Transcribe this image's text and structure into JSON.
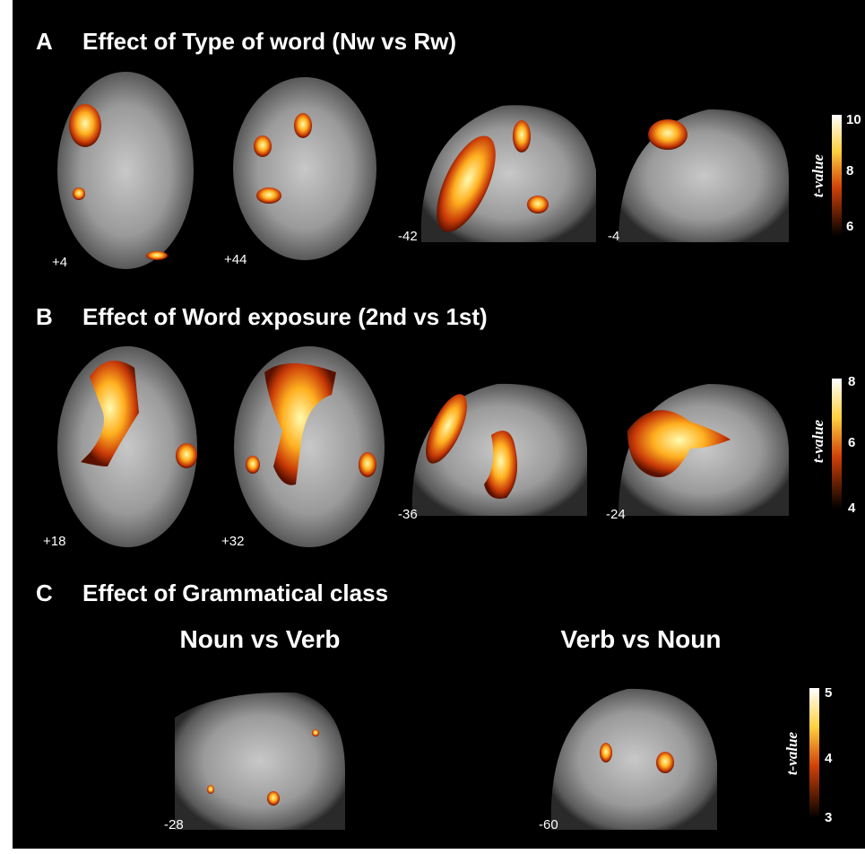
{
  "panels": [
    {
      "label": "A",
      "title": "Effect of Type of word (Nw vs Rw)",
      "slices": [
        "+4",
        "+44",
        "-42",
        "-4"
      ],
      "colorbar": {
        "label": "t-value",
        "ticks": [
          10,
          8,
          6
        ]
      }
    },
    {
      "label": "B",
      "title": "Effect of Word exposure (2nd vs 1st)",
      "slices": [
        "+18",
        "+32",
        "-36",
        "-24"
      ],
      "colorbar": {
        "label": "t-value",
        "ticks": [
          8,
          6,
          4
        ]
      }
    },
    {
      "label": "C",
      "title": "Effect of Grammatical class",
      "subtitles": [
        "Noun vs Verb",
        "Verb vs Noun"
      ],
      "slices": [
        "-28",
        "-60"
      ],
      "colorbar": {
        "label": "t-value",
        "ticks": [
          5,
          4,
          3
        ]
      }
    }
  ]
}
